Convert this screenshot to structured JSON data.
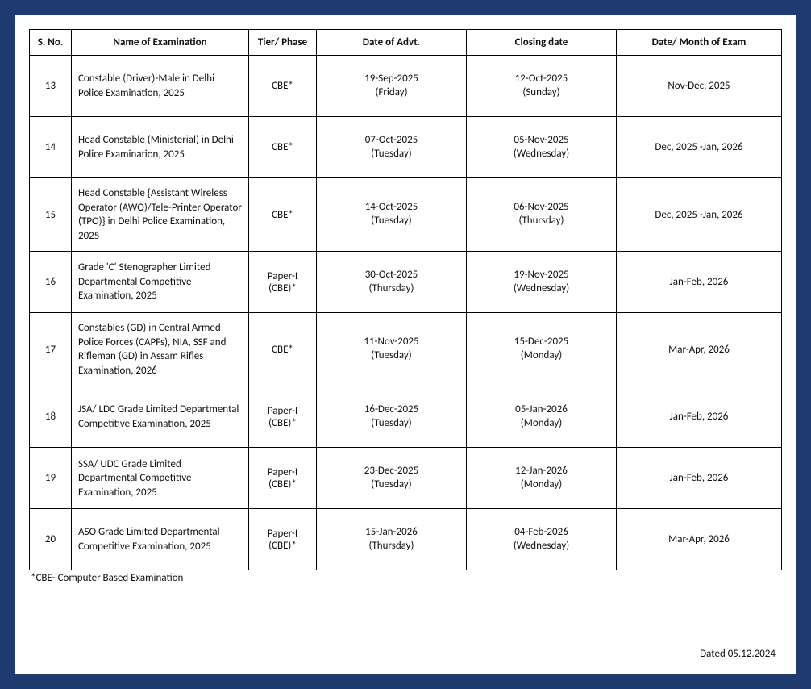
{
  "table": {
    "columns": [
      "S. No.",
      "Name of Examination",
      "Tier/ Phase",
      "Date of Advt.",
      "Closing date",
      "Date/ Month of Exam"
    ],
    "rows": [
      {
        "sno": "13",
        "name": "Constable (Driver)-Male in Delhi Police Examination, 2025",
        "tier": "CBE*",
        "advt_date": "19-Sep-2025",
        "advt_day": "(Friday)",
        "close_date": "12-Oct-2025",
        "close_day": "(Sunday)",
        "exam": "Nov-Dec, 2025"
      },
      {
        "sno": "14",
        "name": "Head Constable (Ministerial) in Delhi Police Examination, 2025",
        "tier": "CBE*",
        "advt_date": "07-Oct-2025",
        "advt_day": "(Tuesday)",
        "close_date": "05-Nov-2025",
        "close_day": "(Wednesday)",
        "exam": "Dec, 2025 -Jan, 2026"
      },
      {
        "sno": "15",
        "name": "Head Constable {Assistant Wireless Operator (AWO)/Tele-Printer Operator (TPO)} in Delhi Police Examination, 2025",
        "tier": "CBE*",
        "advt_date": "14-Oct-2025",
        "advt_day": "(Tuesday)",
        "close_date": "06-Nov-2025",
        "close_day": "(Thursday)",
        "exam": "Dec, 2025 -Jan, 2026"
      },
      {
        "sno": "16",
        "name": "Grade 'C' Stenographer Limited Departmental Competitive Examination, 2025",
        "tier": "Paper-I (CBE)*",
        "advt_date": "30-Oct-2025",
        "advt_day": "(Thursday)",
        "close_date": "19-Nov-2025",
        "close_day": "(Wednesday)",
        "exam": "Jan-Feb, 2026"
      },
      {
        "sno": "17",
        "name": "Constables (GD) in Central Armed Police Forces (CAPFs), NIA, SSF and Rifleman (GD) in Assam Rifles Examination, 2026",
        "tier": "CBE*",
        "advt_date": "11-Nov-2025",
        "advt_day": "(Tuesday)",
        "close_date": "15-Dec-2025",
        "close_day": "(Monday)",
        "exam": "Mar-Apr, 2026"
      },
      {
        "sno": "18",
        "name": "JSA/ LDC Grade Limited Departmental Competitive Examination, 2025",
        "tier": "Paper-I (CBE)*",
        "advt_date": "16-Dec-2025",
        "advt_day": "(Tuesday)",
        "close_date": "05-Jan-2026",
        "close_day": "(Monday)",
        "exam": "Jan-Feb, 2026"
      },
      {
        "sno": "19",
        "name": "SSA/ UDC Grade Limited Departmental Competitive Examination, 2025",
        "tier": "Paper-I (CBE)*",
        "advt_date": "23-Dec-2025",
        "advt_day": "(Tuesday)",
        "close_date": "12-Jan-2026",
        "close_day": "(Monday)",
        "exam": "Jan-Feb, 2026"
      },
      {
        "sno": "20",
        "name": "ASO Grade Limited Departmental Competitive Examination, 2025",
        "tier": "Paper-I (CBE)*",
        "advt_date": "15-Jan-2026",
        "advt_day": "(Thursday)",
        "close_date": "04-Feb-2026",
        "close_day": "(Wednesday)",
        "exam": "Mar-Apr, 2026"
      }
    ]
  },
  "footnote": "*CBE- Computer Based Examination",
  "dated": "Dated 05.12.2024"
}
